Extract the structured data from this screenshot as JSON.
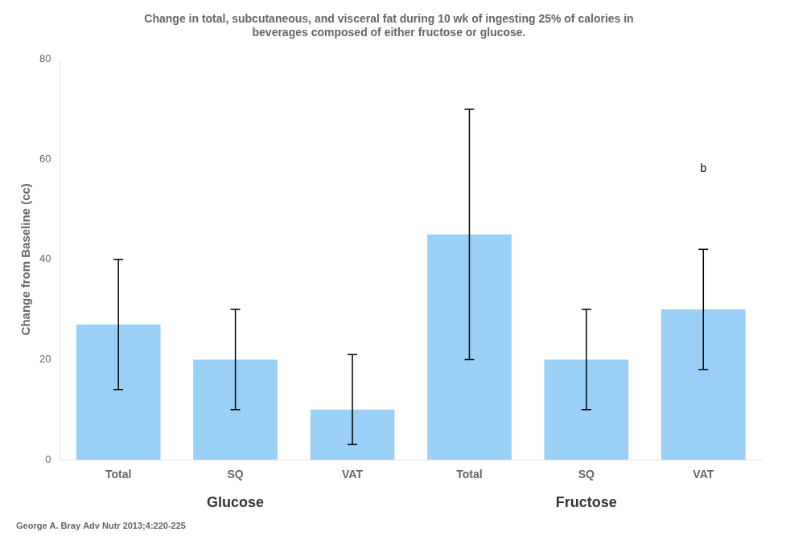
{
  "chart_data": {
    "type": "bar",
    "title": [
      "Change in total, subcutaneous, and visceral fat during 10 wk of ingesting 25% of calories in",
      "beverages composed of either fructose or glucose."
    ],
    "ylabel": "Change from Baseline (cc)",
    "citation": "George A. Bray Adv Nutr 2013;4:220-225",
    "categories": [
      "Total",
      "SQ",
      "VAT"
    ],
    "groups": [
      {
        "name": "Glucose",
        "values": [
          27,
          20,
          10
        ],
        "error_plus": [
          13,
          10,
          11
        ],
        "error_minus": [
          13,
          10,
          7
        ]
      },
      {
        "name": "Fructose",
        "values": [
          45,
          20,
          30
        ],
        "error_plus": [
          25,
          10,
          12
        ],
        "error_minus": [
          25,
          10,
          12
        ]
      }
    ],
    "annotations": [
      {
        "text": "b",
        "group": "Fructose",
        "category": "VAT",
        "y": 57
      }
    ],
    "ylim": [
      0,
      80
    ],
    "yticks": [
      0,
      20,
      40,
      60,
      80
    ],
    "grid": false
  }
}
